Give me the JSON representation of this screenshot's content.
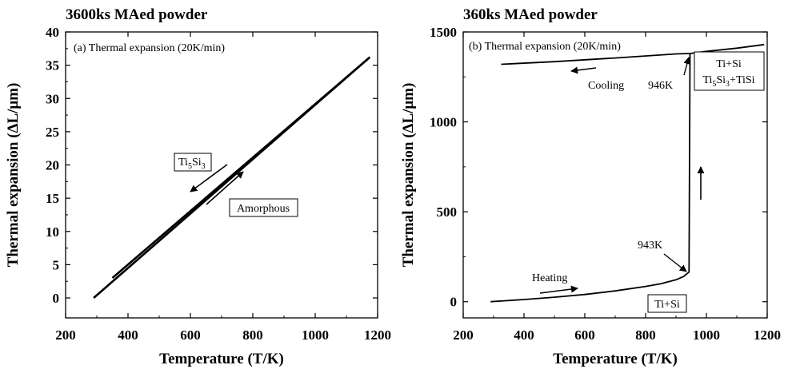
{
  "colors": {
    "line": "#000000",
    "background": "#ffffff"
  },
  "chart_data": [
    {
      "type": "line",
      "title": "3600ks MAed powder",
      "inner_label": "(a) Thermal expansion (20K/min)",
      "xlabel": "Temperature (T/K)",
      "ylabel": "Thermal expansion (ΔL/μm)",
      "xlim": [
        200,
        1200
      ],
      "ylim": [
        -3,
        40
      ],
      "xticks": [
        200,
        400,
        600,
        800,
        1000,
        1200
      ],
      "yticks": [
        0,
        5,
        10,
        15,
        20,
        25,
        30,
        35,
        40
      ],
      "series": [
        {
          "x": [
            290,
            1175
          ],
          "y": [
            0,
            36.2
          ]
        },
        {
          "x": [
            350,
            1175
          ],
          "y": [
            3.0,
            36.2
          ]
        }
      ],
      "annotations": {
        "upper_box": {
          "base": "Ti",
          "sub1": "5",
          "mid": "Si",
          "sub2": "3"
        },
        "lower_box": "Amorphous"
      }
    },
    {
      "type": "line",
      "title": "360ks MAed powder",
      "inner_label": "(b) Thermal expansion (20K/min)",
      "xlabel": "Temperature (T/K)",
      "ylabel": "Thermal expansion (ΔL/μm)",
      "xlim": [
        200,
        1200
      ],
      "ylim": [
        -90,
        1500
      ],
      "xticks": [
        200,
        400,
        600,
        800,
        1000,
        1200
      ],
      "yticks": [
        0,
        500,
        1000,
        1500
      ],
      "series": [
        {
          "x": [
            290,
            400,
            500,
            600,
            700,
            800,
            850,
            900,
            925,
            943,
            946,
            1000,
            1100,
            1190
          ],
          "y": [
            0,
            12,
            25,
            40,
            60,
            85,
            100,
            122,
            140,
            165,
            1380,
            1392,
            1410,
            1430
          ]
        },
        {
          "x": [
            325,
            500,
            700,
            900,
            946
          ],
          "y": [
            1320,
            1335,
            1355,
            1378,
            1380
          ]
        }
      ],
      "annotations": {
        "cooling": "Cooling",
        "heating": "Heating",
        "k946": "946K",
        "k943": "943K",
        "box_bottom": "Ti+Si",
        "box_top_line1": "Ti+Si",
        "box_top_line2": {
          "base": "Ti",
          "sub1": "5",
          "mid": "Si",
          "sub2": "3",
          "suffix": "+TiSi"
        }
      }
    }
  ]
}
